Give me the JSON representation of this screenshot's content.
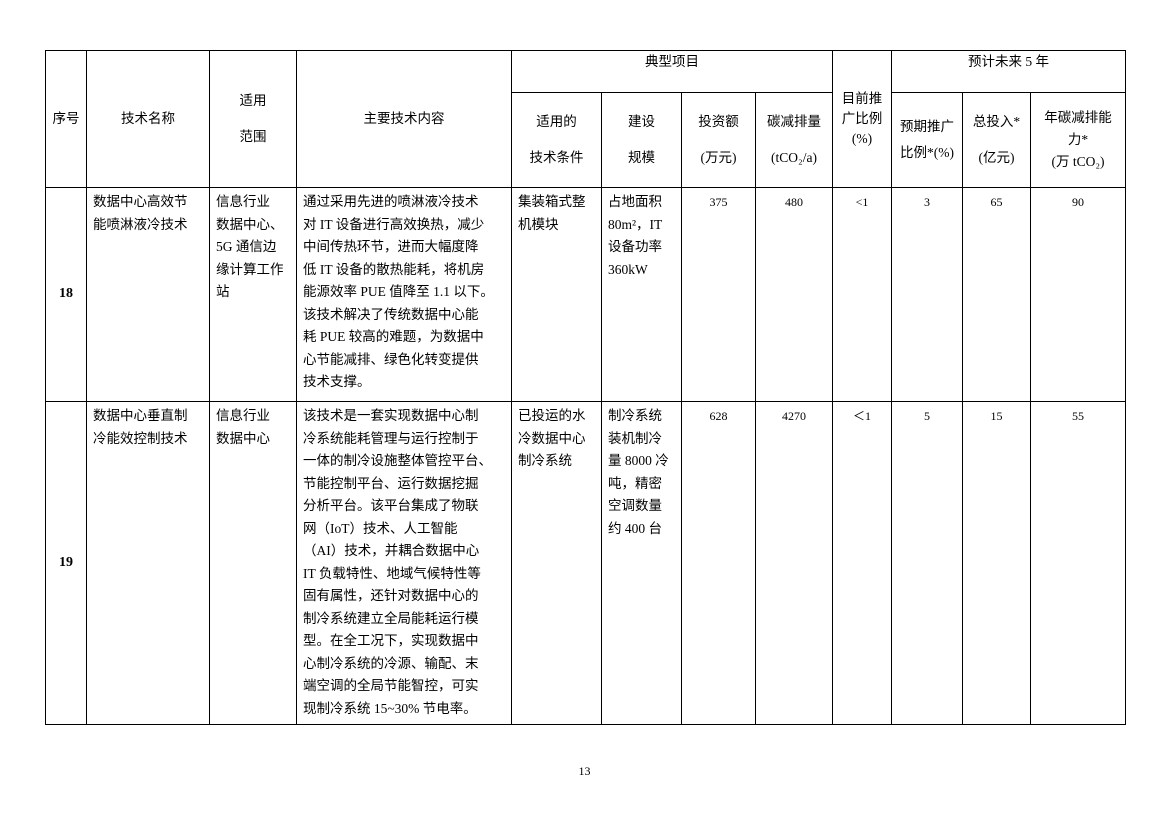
{
  "header": {
    "seq": "序号",
    "tech_name": "技术名称",
    "scope": "适用\n范围",
    "content": "主要技术内容",
    "typical_project": "典型项目",
    "conditions": "适用的\n技术条件",
    "scale": "建设\n规模",
    "investment": "投资额\n(万元)",
    "carbon": "碳减排量\n(tCO₂/a)",
    "current_ratio": "目前推\n广比例\n(%)",
    "forecast": "预计未来 5 年",
    "expected_ratio": "预期推广\n比例*(%)",
    "total_investment": "总投入*\n(亿元)",
    "annual_capacity": "年碳减排能\n力*\n(万 tCO₂)"
  },
  "rows": [
    {
      "seq": "18",
      "tech_name": "数据中心高效节\n能喷淋液冷技术",
      "scope": "信息行业\n数据中心、\n5G 通信边\n缘计算工作\n站",
      "content": "通过采用先进的喷淋液冷技术\n对 IT 设备进行高效换热，减少\n中间传热环节，进而大幅度降\n低 IT 设备的散热能耗，将机房\n能源效率 PUE 值降至 1.1 以下。\n该技术解决了传统数据中心能\n耗 PUE 较高的难题，为数据中\n心节能减排、绿色化转变提供\n技术支撑。",
      "conditions": "集装箱式整\n机模块",
      "scale": "占地面积\n80m²，IT\n设备功率\n360kW",
      "investment": "375",
      "carbon": "480",
      "current_ratio": "<1",
      "expected_ratio": "3",
      "total_investment": "65",
      "annual_capacity": "90"
    },
    {
      "seq": "19",
      "tech_name": "数据中心垂直制\n冷能效控制技术",
      "scope": "信息行业\n数据中心",
      "content": "该技术是一套实现数据中心制\n冷系统能耗管理与运行控制于\n一体的制冷设施整体管控平台、\n节能控制平台、运行数据挖掘\n分析平台。该平台集成了物联\n网（IoT）技术、人工智能\n（AI）技术，并耦合数据中心\nIT 负载特性、地域气候特性等\n固有属性，还针对数据中心的\n制冷系统建立全局能耗运行模\n型。在全工况下，实现数据中\n心制冷系统的冷源、输配、末\n端空调的全局节能智控，可实\n现制冷系统 15~30% 节电率。",
      "conditions": "已投运的水\n冷数据中心\n制冷系统",
      "scale": "制冷系统\n装机制冷\n量 8000 冷\n吨，精密\n空调数量\n约 400 台",
      "investment": "628",
      "carbon": "4270",
      "current_ratio": "＜1",
      "expected_ratio": "5",
      "total_investment": "15",
      "annual_capacity": "55"
    }
  ],
  "page_number": "13"
}
